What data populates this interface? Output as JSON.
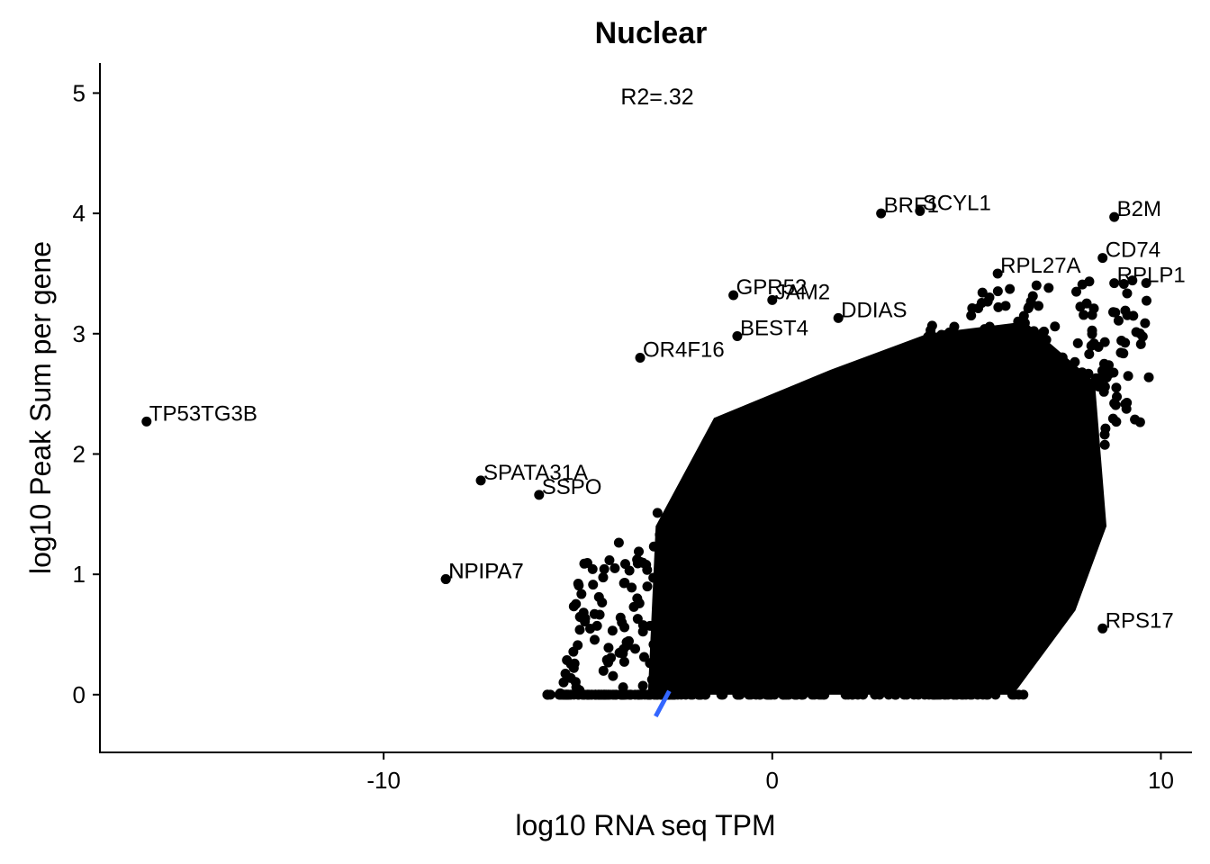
{
  "chart_data": {
    "type": "scatter",
    "title": "Nuclear",
    "xlabel": "log10 RNA seq TPM",
    "ylabel": "log10 Peak Sum per gene",
    "xlim": [
      -17.3,
      10.8
    ],
    "ylim": [
      -0.48,
      5.25
    ],
    "x_ticks": [
      -10,
      0,
      10
    ],
    "y_ticks": [
      0,
      1,
      2,
      3,
      4,
      5
    ],
    "grid": false,
    "annotation": "R2=.32",
    "point_color": "#000000",
    "fit_line_color": "#3366ff",
    "fit_line": {
      "x": [
        -3.0,
        -2.65
      ],
      "y": [
        -0.18,
        0.03
      ]
    },
    "labeled_points": [
      {
        "label": "TP53TG3B",
        "x": -16.1,
        "y": 2.27
      },
      {
        "label": "NPIPA7",
        "x": -8.4,
        "y": 0.96
      },
      {
        "label": "SPATA31A",
        "x": -7.5,
        "y": 1.78
      },
      {
        "label": "SSPO",
        "x": -6.0,
        "y": 1.66
      },
      {
        "label": "OR4F16",
        "x": -3.4,
        "y": 2.8
      },
      {
        "label": "GPR52",
        "x": -1.0,
        "y": 3.32
      },
      {
        "label": "JAM2",
        "x": 0.0,
        "y": 3.28
      },
      {
        "label": "BEST4",
        "x": -0.9,
        "y": 2.98
      },
      {
        "label": "DDIAS",
        "x": 1.7,
        "y": 3.13
      },
      {
        "label": "BRF1",
        "x": 2.8,
        "y": 4.0
      },
      {
        "label": "SCYL1",
        "x": 3.8,
        "y": 4.02
      },
      {
        "label": "B2M",
        "x": 8.8,
        "y": 3.97
      },
      {
        "label": "CD74",
        "x": 8.5,
        "y": 3.63
      },
      {
        "label": "RPL27A",
        "x": 5.8,
        "y": 3.5
      },
      {
        "label": "RPLP1",
        "x": 8.8,
        "y": 3.42
      },
      {
        "label": "RPS17",
        "x": 8.5,
        "y": 0.55
      },
      {
        "label": "NPIPA7",
        "x": -8.4,
        "y": 0.96
      }
    ]
  }
}
